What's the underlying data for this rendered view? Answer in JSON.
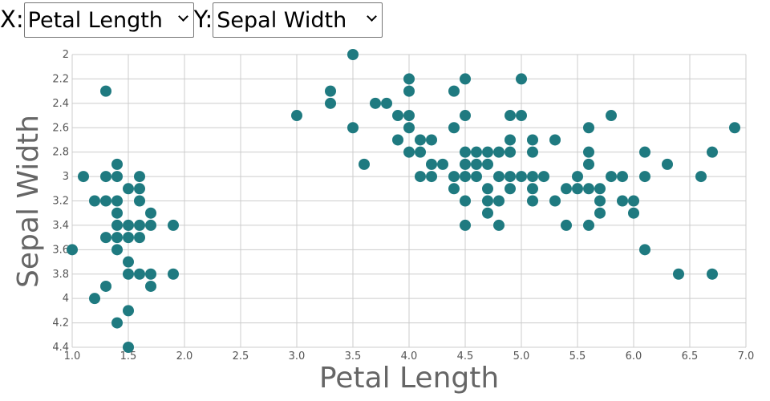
{
  "controls": {
    "x_label": "X:",
    "x_selected": "Petal Length",
    "y_label": "Y:",
    "y_selected": "Sepal Width"
  },
  "colors": {
    "point": "#1f7a80",
    "grid": "#cccccc",
    "axis_text": "#555555",
    "axis_title": "#666666"
  },
  "chart_data": {
    "type": "scatter",
    "xlabel": "Petal Length",
    "ylabel": "Sepal Width",
    "xlim": [
      1.0,
      7.0
    ],
    "ylim": [
      2.0,
      4.4
    ],
    "y_inverted": true,
    "grid": true,
    "x_ticks": [
      "1.0",
      "1.5",
      "2.0",
      "2.5",
      "3.0",
      "3.5",
      "4.0",
      "4.5",
      "5.0",
      "5.5",
      "6.0",
      "6.5",
      "7.0"
    ],
    "y_ticks": [
      "2",
      "2.2",
      "2.4",
      "2.6",
      "2.8",
      "3",
      "3.2",
      "3.4",
      "3.6",
      "3.8",
      "4",
      "4.2",
      "4.4"
    ],
    "points": [
      [
        1.0,
        3.6
      ],
      [
        1.1,
        3.0
      ],
      [
        1.2,
        3.2
      ],
      [
        1.2,
        4.0
      ],
      [
        1.3,
        2.3
      ],
      [
        1.3,
        3.0
      ],
      [
        1.3,
        3.2
      ],
      [
        1.3,
        3.5
      ],
      [
        1.3,
        3.9
      ],
      [
        1.4,
        2.9
      ],
      [
        1.4,
        3.0
      ],
      [
        1.4,
        3.2
      ],
      [
        1.4,
        3.3
      ],
      [
        1.4,
        3.4
      ],
      [
        1.4,
        3.5
      ],
      [
        1.4,
        3.6
      ],
      [
        1.4,
        4.2
      ],
      [
        1.5,
        3.1
      ],
      [
        1.5,
        3.4
      ],
      [
        1.5,
        3.5
      ],
      [
        1.5,
        3.7
      ],
      [
        1.5,
        3.8
      ],
      [
        1.5,
        4.1
      ],
      [
        1.5,
        4.4
      ],
      [
        1.6,
        3.0
      ],
      [
        1.6,
        3.1
      ],
      [
        1.6,
        3.2
      ],
      [
        1.6,
        3.4
      ],
      [
        1.6,
        3.5
      ],
      [
        1.6,
        3.8
      ],
      [
        1.7,
        3.3
      ],
      [
        1.7,
        3.4
      ],
      [
        1.7,
        3.8
      ],
      [
        1.7,
        3.9
      ],
      [
        1.9,
        3.4
      ],
      [
        1.9,
        3.8
      ],
      [
        3.0,
        2.5
      ],
      [
        3.3,
        2.3
      ],
      [
        3.3,
        2.4
      ],
      [
        3.5,
        2.0
      ],
      [
        3.5,
        2.6
      ],
      [
        3.6,
        2.9
      ],
      [
        3.7,
        2.4
      ],
      [
        3.8,
        2.4
      ],
      [
        3.9,
        2.5
      ],
      [
        3.9,
        2.7
      ],
      [
        4.0,
        2.2
      ],
      [
        4.0,
        2.3
      ],
      [
        4.0,
        2.5
      ],
      [
        4.0,
        2.6
      ],
      [
        4.0,
        2.8
      ],
      [
        4.1,
        2.7
      ],
      [
        4.1,
        2.8
      ],
      [
        4.1,
        3.0
      ],
      [
        4.2,
        2.7
      ],
      [
        4.2,
        2.9
      ],
      [
        4.2,
        3.0
      ],
      [
        4.3,
        2.9
      ],
      [
        4.4,
        2.3
      ],
      [
        4.4,
        2.6
      ],
      [
        4.4,
        3.0
      ],
      [
        4.4,
        3.1
      ],
      [
        4.5,
        2.2
      ],
      [
        4.5,
        2.5
      ],
      [
        4.5,
        2.8
      ],
      [
        4.5,
        2.9
      ],
      [
        4.5,
        3.0
      ],
      [
        4.5,
        3.2
      ],
      [
        4.5,
        3.4
      ],
      [
        4.6,
        2.8
      ],
      [
        4.6,
        2.9
      ],
      [
        4.6,
        3.0
      ],
      [
        4.7,
        2.8
      ],
      [
        4.7,
        2.9
      ],
      [
        4.7,
        3.1
      ],
      [
        4.7,
        3.2
      ],
      [
        4.7,
        3.3
      ],
      [
        4.8,
        2.8
      ],
      [
        4.8,
        3.0
      ],
      [
        4.8,
        3.2
      ],
      [
        4.8,
        3.4
      ],
      [
        4.9,
        2.5
      ],
      [
        4.9,
        2.7
      ],
      [
        4.9,
        2.8
      ],
      [
        4.9,
        3.0
      ],
      [
        4.9,
        3.1
      ],
      [
        5.0,
        2.2
      ],
      [
        5.0,
        2.5
      ],
      [
        5.0,
        3.0
      ],
      [
        5.1,
        2.7
      ],
      [
        5.1,
        2.8
      ],
      [
        5.1,
        3.0
      ],
      [
        5.1,
        3.1
      ],
      [
        5.1,
        3.2
      ],
      [
        5.2,
        3.0
      ],
      [
        5.3,
        2.7
      ],
      [
        5.3,
        3.2
      ],
      [
        5.4,
        3.1
      ],
      [
        5.4,
        3.4
      ],
      [
        5.5,
        3.0
      ],
      [
        5.5,
        3.1
      ],
      [
        5.6,
        2.6
      ],
      [
        5.6,
        2.8
      ],
      [
        5.6,
        2.9
      ],
      [
        5.6,
        3.1
      ],
      [
        5.6,
        3.4
      ],
      [
        5.7,
        3.1
      ],
      [
        5.7,
        3.2
      ],
      [
        5.7,
        3.3
      ],
      [
        5.8,
        2.5
      ],
      [
        5.8,
        3.0
      ],
      [
        5.9,
        3.0
      ],
      [
        5.9,
        3.2
      ],
      [
        6.0,
        3.2
      ],
      [
        6.0,
        3.3
      ],
      [
        6.1,
        2.8
      ],
      [
        6.1,
        3.0
      ],
      [
        6.1,
        3.6
      ],
      [
        6.3,
        2.9
      ],
      [
        6.4,
        3.8
      ],
      [
        6.6,
        3.0
      ],
      [
        6.7,
        2.8
      ],
      [
        6.7,
        3.8
      ],
      [
        6.9,
        2.6
      ]
    ]
  }
}
